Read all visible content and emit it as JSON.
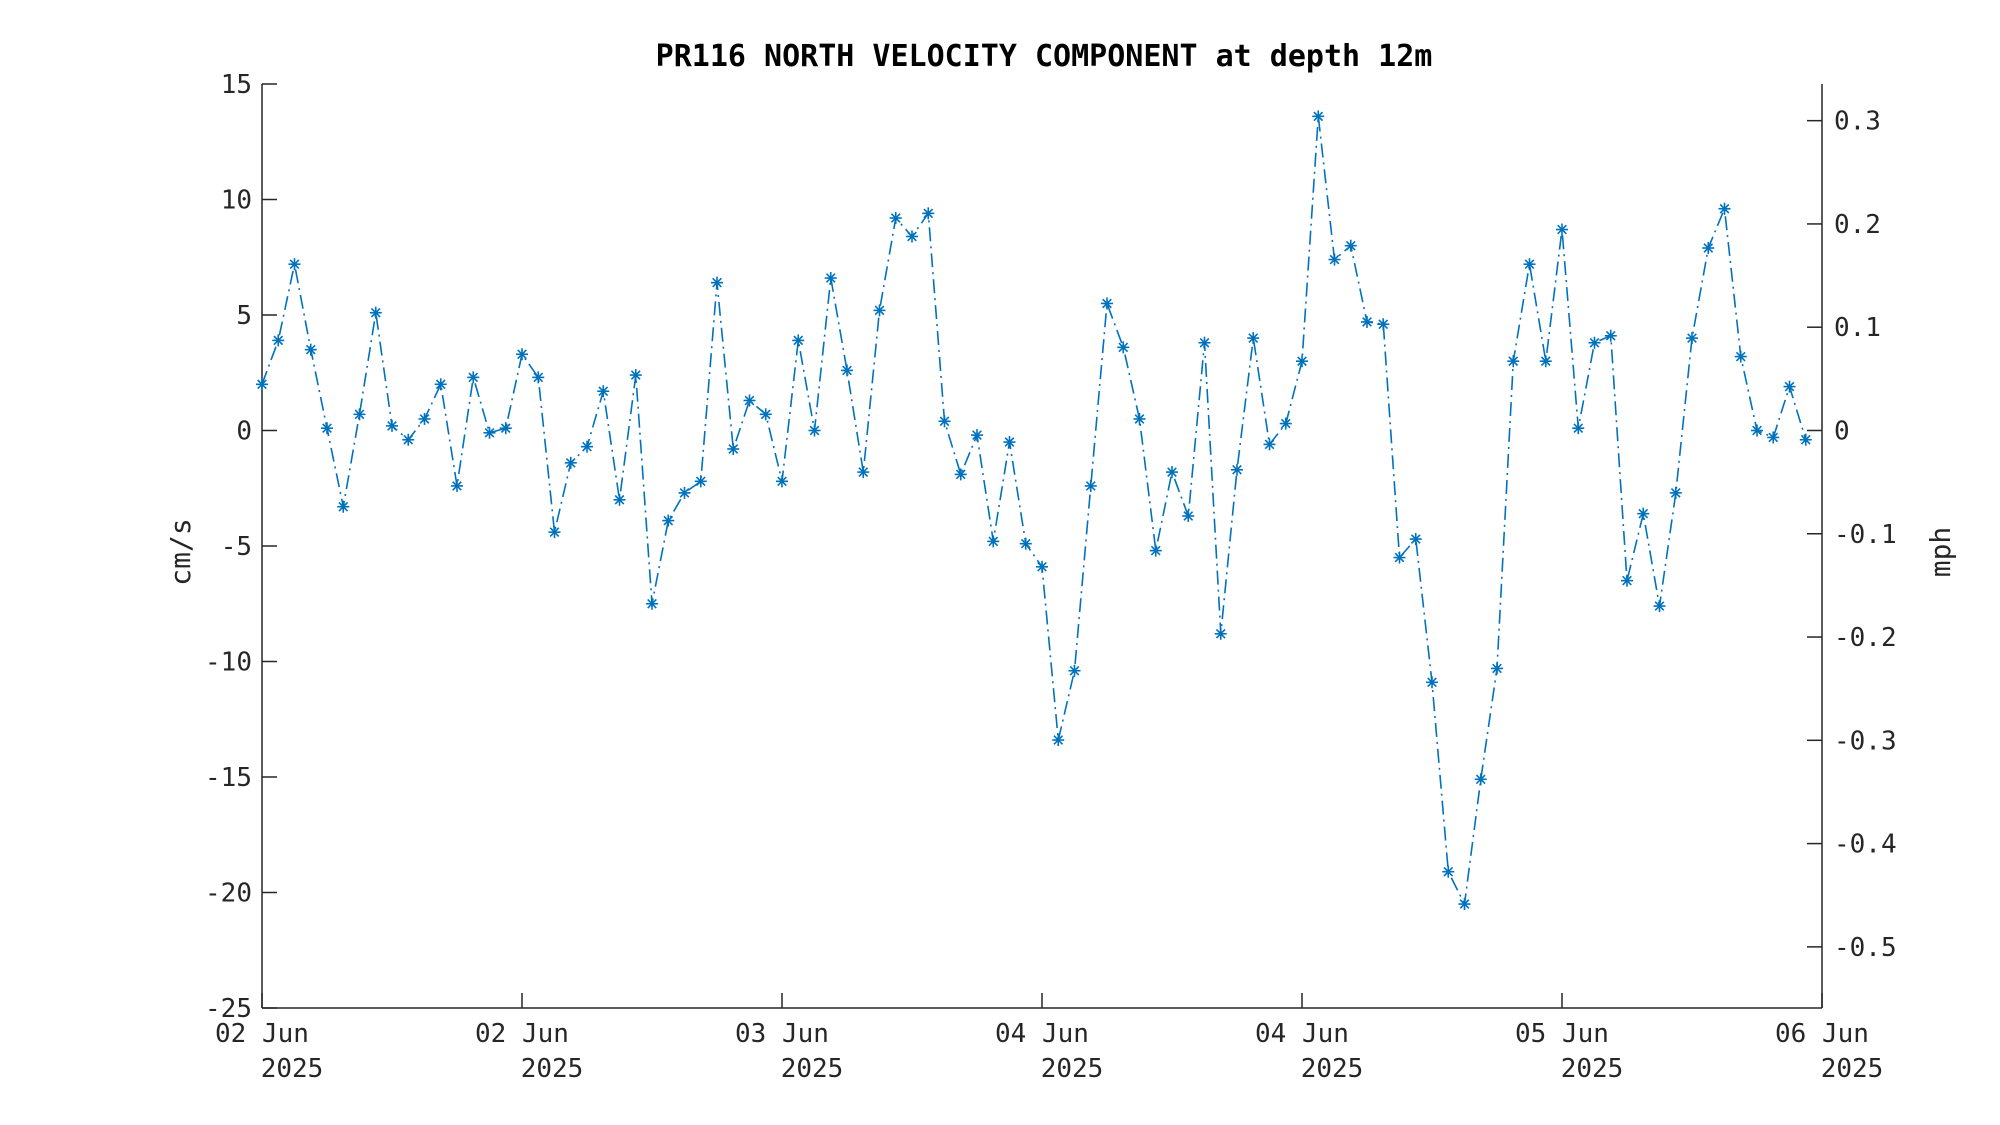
{
  "chart_data": {
    "type": "line",
    "title": "PR116 NORTH VELOCITY COMPONENT at depth 12m",
    "ylabel": "cm/s",
    "y2label": "mph",
    "ylim": [
      -25,
      15
    ],
    "y2lim": [
      -0.5592,
      0.3355
    ],
    "xlim": [
      "2025-06-02 00:00",
      "2025-06-06 00:00"
    ],
    "yticks": [
      15,
      10,
      5,
      0,
      -5,
      -10,
      -15,
      -20,
      -25
    ],
    "y2ticks": [
      "0.3",
      "0.2",
      "0.1",
      "0",
      "-0.1",
      "-0.2",
      "-0.3",
      "-0.4",
      "-0.5"
    ],
    "y2tick_values": [
      0.3,
      0.2,
      0.1,
      0,
      -0.1,
      -0.2,
      -0.3,
      -0.4,
      -0.5
    ],
    "xticks": [
      {
        "top": "02 Jun",
        "bottom": "2025"
      },
      {
        "top": "02 Jun",
        "bottom": "2025"
      },
      {
        "top": "03 Jun",
        "bottom": "2025"
      },
      {
        "top": "04 Jun",
        "bottom": "2025"
      },
      {
        "top": "04 Jun",
        "bottom": "2025"
      },
      {
        "top": "05 Jun",
        "bottom": "2025"
      },
      {
        "top": "06 Jun",
        "bottom": "2025"
      }
    ],
    "xtick_times": [
      "2025-06-02 00:00",
      "2025-06-02 16:00",
      "2025-06-03 08:00",
      "2025-06-04 00:00",
      "2025-06-04 16:00",
      "2025-06-05 08:00",
      "2025-06-06 00:00"
    ],
    "grid": false,
    "color": "#0072bd",
    "series": [
      {
        "x_start": "2025-06-02 00:00",
        "x_step_hours": 1,
        "values": [
          2.0,
          3.9,
          7.2,
          3.5,
          0.1,
          -3.3,
          0.7,
          5.1,
          0.2,
          -0.4,
          0.5,
          2.0,
          -2.4,
          2.3,
          -0.1,
          0.1,
          3.3,
          2.3,
          -4.4,
          -1.4,
          -0.7,
          1.7,
          -3.0,
          2.4,
          -7.5,
          -3.9,
          -2.7,
          -2.2,
          6.4,
          -0.8,
          1.3,
          0.7,
          -2.2,
          3.9,
          0.0,
          6.6,
          2.6,
          -1.8,
          5.2,
          9.2,
          8.4,
          9.4,
          0.4,
          -1.9,
          -0.2,
          -4.8,
          -0.5,
          -4.9,
          -5.9,
          -13.4,
          -10.4,
          -2.4,
          5.5,
          3.6,
          0.5,
          -5.2,
          -1.8,
          -3.7,
          3.8,
          -8.8,
          -1.7,
          4.0,
          -0.6,
          0.3,
          3.0,
          13.6,
          7.4,
          8.0,
          4.7,
          4.6,
          -5.5,
          -4.7,
          -10.9,
          -19.1,
          -20.5,
          -15.1,
          -10.3,
          3.0,
          7.2,
          3.0,
          8.7,
          0.1,
          3.8,
          4.1,
          -6.5,
          -3.6,
          -7.6,
          -2.7,
          4.0,
          7.9,
          9.6,
          3.2,
          0.0,
          -0.3,
          1.9,
          -0.4
        ]
      }
    ]
  }
}
